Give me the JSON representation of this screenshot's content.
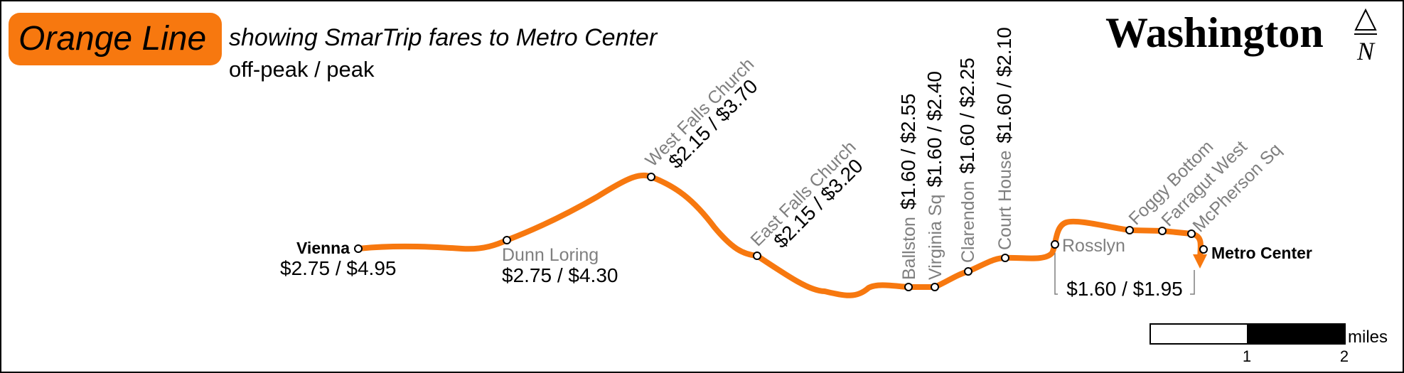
{
  "header": {
    "title": "Orange Line",
    "subtitle": "showing SmarTrip fares to Metro Center",
    "fare_legend": "off-peak / peak",
    "city": "Washington",
    "north": "N"
  },
  "stations": [
    {
      "name": "Vienna",
      "fare": "$2.75 / $4.95"
    },
    {
      "name": "Dunn Loring",
      "fare": "$2.75 / $4.30"
    },
    {
      "name": "West Falls Church",
      "fare": "$2.15 / $3.70"
    },
    {
      "name": "East Falls Church",
      "fare": "$2.15 / $3.20"
    },
    {
      "name": "Ballston",
      "fare": "$1.60 / $2.55"
    },
    {
      "name": "Virginia Sq",
      "fare": "$1.60 / $2.40"
    },
    {
      "name": "Clarendon",
      "fare": "$1.60 / $2.25"
    },
    {
      "name": "Court House",
      "fare": "$1.60 / $2.10"
    },
    {
      "name": "Rosslyn"
    },
    {
      "name": "Foggy Bottom"
    },
    {
      "name": "Farragut West"
    },
    {
      "name": "McPherson Sq"
    },
    {
      "name": "Metro Center"
    }
  ],
  "downtown_fare": "$1.60 / $1.95",
  "scale_bar": {
    "tick_1": "1",
    "tick_2": "2",
    "unit": "miles"
  }
}
